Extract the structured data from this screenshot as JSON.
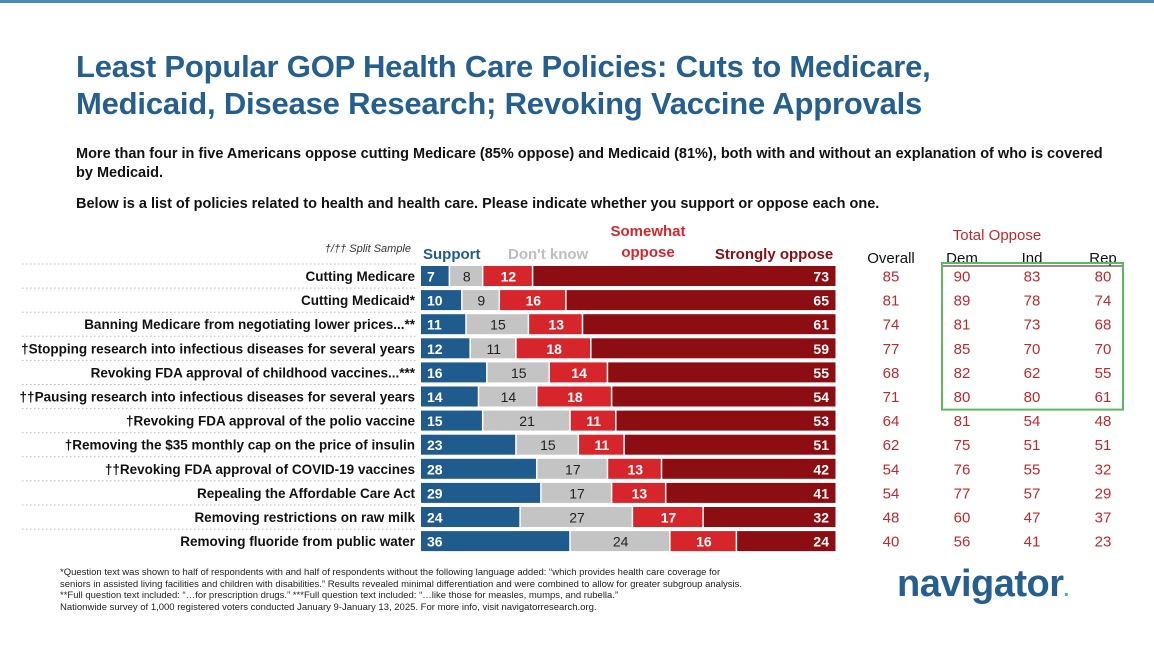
{
  "title_line1": "Least Popular GOP Health Care Policies: Cuts to Medicare,",
  "title_line2": "Medicaid, Disease Research; Revoking Vaccine Approvals",
  "subtitle": "More than four in five Americans oppose cutting Medicare (85% oppose) and Medicaid (81%), both with and without an explanation of who is covered by Medicaid.",
  "question": "Below is a list of policies related to health and health care. Please indicate whether you support or oppose each one.",
  "colors": {
    "support": "#1f5b8d",
    "dont_know": "#c4c4c4",
    "somewhat_oppose": "#d7262b",
    "strongly_oppose": "#8c0e12",
    "oppose_text": "#c0282d",
    "highlight_box": "#5fb85f"
  },
  "chart_data": {
    "type": "bar",
    "stacked": true,
    "orientation": "horizontal",
    "split_sample_note": "†/†† Split Sample",
    "categories": [
      "Cutting Medicare",
      "Cutting Medicaid*",
      "Banning Medicare from negotiating lower prices...**",
      "†Stopping research into infectious diseases for several years",
      "Revoking FDA approval of childhood vaccines...***",
      "††Pausing research into infectious diseases for several years",
      "†Revoking FDA approval of the polio vaccine",
      "†Removing the $35 monthly cap on the price of insulin",
      "††Revoking FDA approval of COVID-19 vaccines",
      "Repealing the Affordable Care Act",
      "Removing restrictions on raw milk",
      "Removing fluoride from public water"
    ],
    "series": [
      {
        "name": "Support",
        "values": [
          7,
          10,
          11,
          12,
          16,
          14,
          15,
          23,
          28,
          29,
          24,
          36
        ]
      },
      {
        "name": "Don't know",
        "values": [
          8,
          9,
          15,
          11,
          15,
          14,
          21,
          15,
          17,
          17,
          27,
          24
        ]
      },
      {
        "name": "Somewhat oppose",
        "values": [
          12,
          16,
          13,
          18,
          14,
          18,
          11,
          11,
          13,
          13,
          17,
          16
        ]
      },
      {
        "name": "Strongly oppose",
        "values": [
          73,
          65,
          61,
          59,
          55,
          54,
          53,
          51,
          42,
          41,
          32,
          24
        ]
      }
    ],
    "table": {
      "group_header": "Total Oppose",
      "columns": [
        "Overall",
        "Dem",
        "Ind",
        "Rep"
      ],
      "rows": [
        [
          85,
          90,
          83,
          80
        ],
        [
          81,
          89,
          78,
          74
        ],
        [
          74,
          81,
          73,
          68
        ],
        [
          77,
          85,
          70,
          70
        ],
        [
          68,
          82,
          62,
          55
        ],
        [
          71,
          80,
          80,
          61
        ],
        [
          64,
          81,
          54,
          48
        ],
        [
          62,
          75,
          51,
          51
        ],
        [
          54,
          76,
          55,
          32
        ],
        [
          54,
          77,
          57,
          29
        ],
        [
          48,
          60,
          47,
          37
        ],
        [
          40,
          56,
          41,
          23
        ]
      ],
      "highlighted_rows": 6
    }
  },
  "footnotes": [
    "*Question text was shown to half of respondents with and half of respondents without the following language added: “which provides health care coverage for",
    "seniors in assisted living facilities and children with disabilities.” Results revealed minimal differentiation and were combined to allow for greater subgroup analysis.",
    "**Full question text included: “…for prescription drugs.” ***Full question text included: “…like those for measles, mumps, and rubella.”",
    "Nationwide survey of 1,000 registered voters conducted January 9-January 13, 2025. For more info, visit navigatorresearch.org."
  ],
  "logo": "navigator",
  "logo_dot": "."
}
